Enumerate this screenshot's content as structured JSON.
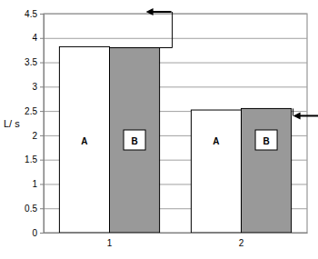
{
  "chart_data": {
    "type": "bar",
    "y_label": "L/ s",
    "categories": [
      "1",
      "2"
    ],
    "series": [
      {
        "name": "A",
        "color": "#ffffff",
        "values": [
          3.82,
          2.52
        ]
      },
      {
        "name": "B",
        "color": "#999999",
        "values": [
          3.8,
          2.55
        ]
      }
    ],
    "ylim": [
      0,
      4.5
    ],
    "yticks": [
      0,
      0.5,
      1,
      1.5,
      2,
      2.5,
      3,
      3.5,
      4,
      4.5
    ],
    "grid": true
  }
}
